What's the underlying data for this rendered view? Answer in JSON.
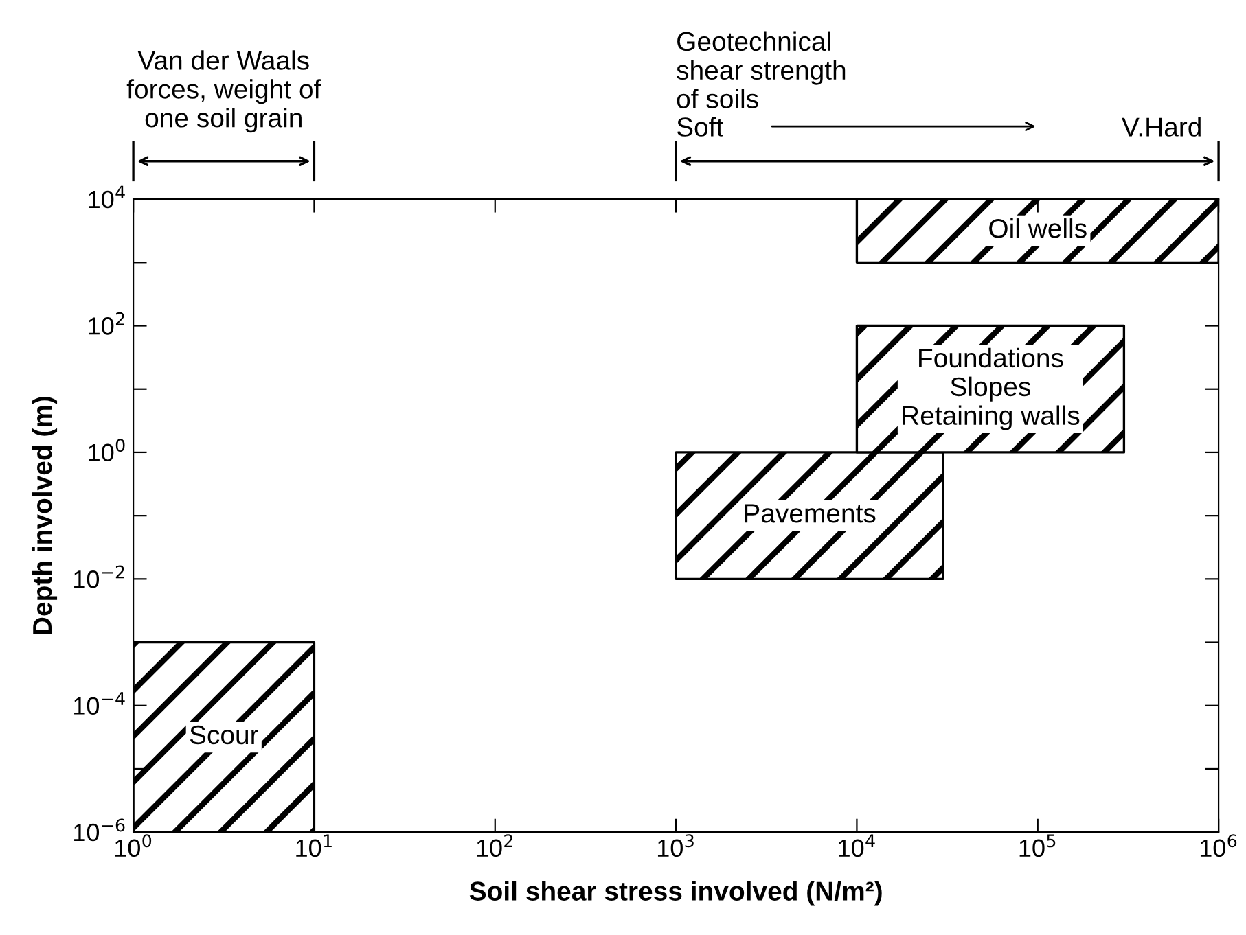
{
  "chart_data": {
    "type": "area",
    "xlabel": "Soil shear stress involved (N/m²)",
    "ylabel": "Depth involved (m)",
    "log": "xy",
    "xlim": [
      1,
      1000000
    ],
    "ylim": [
      1e-06,
      10000
    ],
    "xticks": [
      {
        "value": 1,
        "label": "10$^{0}$"
      },
      {
        "value": 10,
        "label": "10$^{1}$"
      },
      {
        "value": 100,
        "label": "10$^{2}$"
      },
      {
        "value": 1000,
        "label": "10$^{3}$"
      },
      {
        "value": 10000,
        "label": "10$^{4}$"
      },
      {
        "value": 100000,
        "label": "10$^{5}$"
      },
      {
        "value": 1000000,
        "label": "10$^{6}$"
      }
    ],
    "yticks": [
      {
        "value": 1e-06,
        "label": "10$^{−6}$"
      },
      {
        "value": 1e-05,
        "label": null
      },
      {
        "value": 0.0001,
        "label": "10$^{−4}$"
      },
      {
        "value": 0.001,
        "label": null
      },
      {
        "value": 0.01,
        "label": "10$^{−2}$"
      },
      {
        "value": 0.1,
        "label": null
      },
      {
        "value": 1,
        "label": "10$^{0}$"
      },
      {
        "value": 10,
        "label": null
      },
      {
        "value": 100,
        "label": "10$^{2}$"
      },
      {
        "value": 1000,
        "label": null
      },
      {
        "value": 10000,
        "label": "10$^{4}$"
      }
    ],
    "grid": false,
    "legend": false,
    "series": [
      {
        "color": "#000000",
        "x": [
          1,
          10
        ],
        "values": [
          null,
          null
        ],
        "lower": [
          1e-06,
          1e-06
        ],
        "upper": [
          0.001,
          0.001
        ]
      },
      {
        "color": "#000000",
        "x": [
          1000,
          30000
        ],
        "values": [
          null,
          null
        ],
        "lower": [
          0.01,
          0.01
        ],
        "upper": [
          1,
          1
        ]
      },
      {
        "color": "#000000",
        "x": [
          10000,
          300000
        ],
        "values": [
          null,
          null
        ],
        "lower": [
          1,
          1
        ],
        "upper": [
          100,
          100
        ]
      },
      {
        "color": "#000000",
        "x": [
          10000,
          1000000
        ],
        "values": [
          null,
          null
        ],
        "lower": [
          1000,
          1000
        ],
        "upper": [
          10000,
          10000
        ]
      }
    ],
    "annotations": [
      "Van der Waals\nforces, weight of\none soil grain",
      "Geotechnical\nshear strength\nof soils",
      "Soft",
      "V.Hard",
      "Scour",
      "Pavements",
      "Foundations\nSlopes\nRetaining walls",
      "Oil wells"
    ]
  }
}
